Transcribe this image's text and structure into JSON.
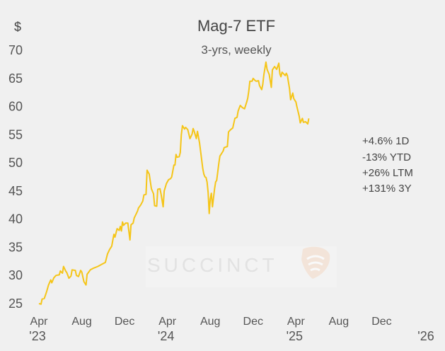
{
  "chart_data": {
    "type": "line",
    "title": "Mag-7 ETF",
    "subtitle": "3-yrs, weekly",
    "y_unit": "$",
    "ylim": [
      25,
      70
    ],
    "y_ticks": [
      25,
      30,
      35,
      40,
      45,
      50,
      55,
      60,
      65,
      70
    ],
    "grid": false,
    "line_color": "#f5c518",
    "x_ticks": [
      {
        "x": 0,
        "label": "Apr",
        "year": "'23"
      },
      {
        "x": 4,
        "label": "Aug",
        "year": ""
      },
      {
        "x": 8,
        "label": "Dec",
        "year": ""
      },
      {
        "x": 12,
        "label": "Apr",
        "year": "'24"
      },
      {
        "x": 16,
        "label": "Aug",
        "year": ""
      },
      {
        "x": 20,
        "label": "Dec",
        "year": ""
      },
      {
        "x": 24,
        "label": "Apr",
        "year": "'25"
      },
      {
        "x": 28,
        "label": "Aug",
        "year": ""
      },
      {
        "x": 32,
        "label": "Dec",
        "year": ""
      },
      {
        "x": 36,
        "label": "",
        "year": "'26"
      }
    ],
    "series": [
      {
        "values": [
          [
            0.0,
            25.0
          ],
          [
            0.2,
            24.9
          ],
          [
            0.3,
            25.8
          ],
          [
            0.5,
            25.9
          ],
          [
            0.7,
            27.0
          ],
          [
            0.9,
            28.3
          ],
          [
            1.1,
            29.2
          ],
          [
            1.2,
            28.7
          ],
          [
            1.4,
            29.6
          ],
          [
            1.6,
            30.0
          ],
          [
            1.9,
            30.1
          ],
          [
            2.0,
            30.8
          ],
          [
            2.2,
            30.4
          ],
          [
            2.3,
            31.6
          ],
          [
            2.5,
            30.8
          ],
          [
            2.6,
            30.5
          ],
          [
            2.8,
            29.5
          ],
          [
            3.0,
            29.9
          ],
          [
            3.1,
            31.0
          ],
          [
            3.4,
            30.9
          ],
          [
            3.5,
            30.0
          ],
          [
            3.7,
            29.8
          ],
          [
            3.9,
            30.9
          ],
          [
            4.0,
            30.6
          ],
          [
            4.2,
            28.9
          ],
          [
            4.4,
            28.3
          ],
          [
            4.5,
            30.2
          ],
          [
            4.8,
            31.0
          ],
          [
            5.1,
            31.3
          ],
          [
            5.5,
            31.6
          ],
          [
            5.9,
            32.0
          ],
          [
            6.2,
            32.3
          ],
          [
            6.4,
            33.8
          ],
          [
            6.6,
            34.6
          ],
          [
            6.8,
            35.2
          ],
          [
            7.0,
            37.3
          ],
          [
            7.1,
            36.8
          ],
          [
            7.3,
            38.3
          ],
          [
            7.5,
            38.0
          ],
          [
            7.6,
            38.7
          ],
          [
            7.7,
            37.9
          ],
          [
            7.8,
            39.5
          ],
          [
            7.9,
            38.9
          ],
          [
            8.1,
            39.3
          ],
          [
            8.3,
            39.3
          ],
          [
            8.5,
            36.3
          ],
          [
            8.6,
            39.0
          ],
          [
            8.8,
            39.3
          ],
          [
            8.9,
            40.2
          ],
          [
            9.2,
            41.4
          ],
          [
            9.3,
            42.0
          ],
          [
            9.5,
            42.5
          ],
          [
            9.7,
            43.2
          ],
          [
            9.8,
            44.3
          ],
          [
            10.0,
            44.4
          ],
          [
            10.1,
            48.7
          ],
          [
            10.3,
            48.0
          ],
          [
            10.5,
            45.4
          ],
          [
            10.7,
            44.5
          ],
          [
            10.8,
            42.4
          ],
          [
            11.0,
            42.3
          ],
          [
            11.1,
            45.3
          ],
          [
            11.3,
            45.4
          ],
          [
            11.4,
            44.5
          ],
          [
            11.6,
            42.2
          ],
          [
            11.7,
            45.0
          ],
          [
            11.9,
            46.3
          ],
          [
            12.1,
            47.0
          ],
          [
            12.3,
            47.2
          ],
          [
            12.4,
            47.5
          ],
          [
            12.6,
            49.6
          ],
          [
            12.7,
            49.6
          ],
          [
            12.8,
            51.5
          ],
          [
            12.9,
            51.0
          ],
          [
            13.1,
            51.1
          ],
          [
            13.2,
            51.8
          ],
          [
            13.3,
            55.0
          ],
          [
            13.4,
            56.6
          ],
          [
            13.6,
            56.0
          ],
          [
            13.7,
            56.3
          ],
          [
            13.9,
            55.9
          ],
          [
            14.1,
            54.3
          ],
          [
            14.3,
            55.1
          ],
          [
            14.4,
            56.1
          ],
          [
            14.5,
            55.6
          ],
          [
            14.7,
            54.3
          ],
          [
            14.8,
            55.6
          ],
          [
            15.0,
            53.5
          ],
          [
            15.2,
            50.5
          ],
          [
            15.3,
            49.0
          ],
          [
            15.4,
            48.0
          ],
          [
            15.5,
            47.5
          ],
          [
            15.6,
            47.4
          ],
          [
            15.7,
            46.6
          ],
          [
            15.8,
            44.7
          ],
          [
            15.9,
            41.0
          ],
          [
            16.0,
            43.6
          ],
          [
            16.1,
            44.6
          ],
          [
            16.2,
            42.2
          ],
          [
            16.4,
            45.4
          ],
          [
            16.5,
            46.6
          ],
          [
            16.6,
            46.9
          ],
          [
            16.8,
            49.9
          ],
          [
            16.9,
            51.2
          ],
          [
            17.0,
            51.5
          ],
          [
            17.2,
            52.1
          ],
          [
            17.3,
            52.7
          ],
          [
            17.6,
            52.9
          ],
          [
            17.7,
            55.5
          ],
          [
            17.9,
            55.9
          ],
          [
            18.1,
            56.2
          ],
          [
            18.3,
            57.9
          ],
          [
            18.5,
            58.1
          ],
          [
            18.6,
            59.2
          ],
          [
            18.8,
            60.2
          ],
          [
            19.0,
            59.8
          ],
          [
            19.2,
            59.6
          ],
          [
            19.4,
            60.8
          ],
          [
            19.5,
            61.5
          ],
          [
            19.6,
            62.8
          ],
          [
            19.7,
            64.5
          ],
          [
            19.9,
            64.5
          ],
          [
            20.0,
            65.0
          ],
          [
            20.2,
            64.6
          ],
          [
            20.3,
            64.5
          ],
          [
            20.5,
            64.6
          ],
          [
            20.6,
            63.7
          ],
          [
            20.8,
            63.0
          ],
          [
            20.9,
            63.9
          ],
          [
            21.0,
            65.6
          ],
          [
            21.2,
            67.9
          ],
          [
            21.3,
            66.6
          ],
          [
            21.5,
            65.7
          ],
          [
            21.7,
            63.4
          ],
          [
            21.8,
            66.5
          ],
          [
            22.0,
            67.1
          ],
          [
            22.2,
            66.6
          ],
          [
            22.4,
            67.7
          ],
          [
            22.5,
            65.8
          ],
          [
            22.6,
            65.3
          ],
          [
            22.7,
            66.1
          ],
          [
            23.0,
            65.5
          ],
          [
            23.1,
            65.9
          ],
          [
            23.2,
            65.5
          ],
          [
            23.4,
            63.2
          ],
          [
            23.5,
            61.2
          ],
          [
            23.7,
            62.4
          ],
          [
            23.8,
            61.4
          ],
          [
            24.0,
            60.8
          ],
          [
            24.1,
            59.9
          ],
          [
            24.3,
            58.3
          ],
          [
            24.4,
            57.1
          ],
          [
            24.6,
            57.9
          ],
          [
            24.7,
            57.2
          ],
          [
            24.9,
            57.3
          ],
          [
            25.1,
            56.9
          ],
          [
            25.2,
            57.9
          ]
        ]
      }
    ]
  },
  "stats": [
    "+4.6% 1D",
    "-13% YTD",
    "+26%  LTM",
    "+131%  3Y"
  ],
  "watermark": {
    "text": "SUCCINCT",
    "logo": "succinct-shield-logo"
  }
}
